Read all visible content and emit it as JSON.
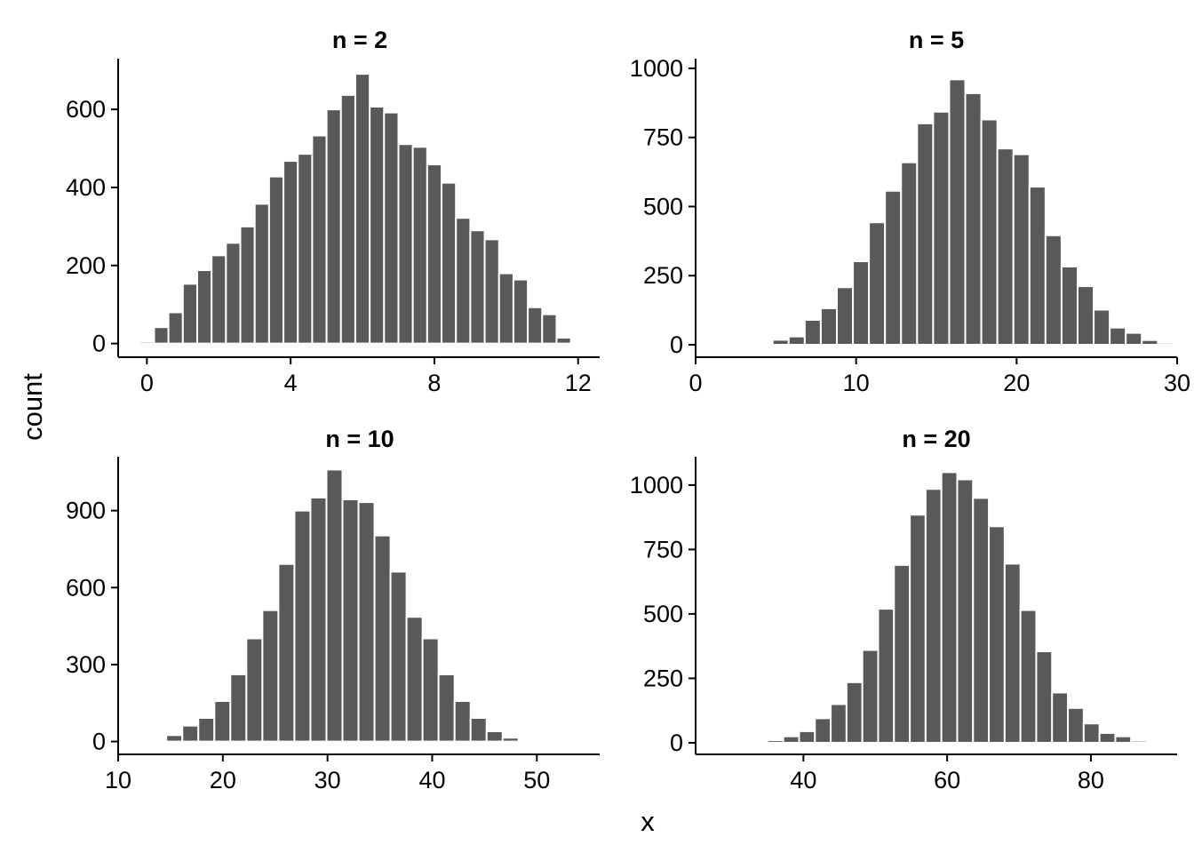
{
  "figure": {
    "xlabel": "x",
    "ylabel": "count",
    "bar_color": "#595959",
    "bar_outline": "#ffffff",
    "background": "#ffffff"
  },
  "chart_data": [
    {
      "type": "bar",
      "title": "n = 2",
      "xlim": [
        -0.8,
        12.6
      ],
      "ylim": [
        -35,
        730
      ],
      "xticks": [
        0,
        4,
        8,
        12
      ],
      "yticks": [
        0,
        200,
        400,
        600
      ],
      "bin_width": 0.4,
      "bin_start": -0.2,
      "values": [
        5,
        42,
        80,
        153,
        188,
        226,
        258,
        300,
        358,
        428,
        468,
        486,
        533,
        600,
        637,
        691,
        607,
        592,
        511,
        504,
        459,
        412,
        322,
        290,
        267,
        180,
        164,
        93,
        75,
        15
      ]
    },
    {
      "type": "bar",
      "title": "n = 5",
      "xlim": [
        0,
        30
      ],
      "ylim": [
        -45,
        1035
      ],
      "xticks": [
        0,
        10,
        20,
        30
      ],
      "yticks": [
        0,
        250,
        500,
        750,
        1000
      ],
      "bin_width": 1,
      "bin_start": 3.8,
      "values": [
        0,
        18,
        30,
        90,
        132,
        208,
        302,
        443,
        557,
        660,
        801,
        843,
        960,
        910,
        815,
        710,
        689,
        572,
        396,
        283,
        212,
        127,
        62,
        43,
        17,
        7
      ]
    },
    {
      "type": "bar",
      "title": "n = 10",
      "xlim": [
        10,
        56
      ],
      "ylim": [
        -50,
        1110
      ],
      "xticks": [
        10,
        20,
        30,
        40,
        50
      ],
      "yticks": [
        0,
        300,
        600,
        900
      ],
      "bin_width": 1.53,
      "bin_start": 14.6,
      "values": [
        25,
        62,
        92,
        158,
        262,
        402,
        512,
        692,
        900,
        951,
        1060,
        944,
        933,
        803,
        662,
        486,
        402,
        262,
        158,
        92,
        40,
        15
      ]
    },
    {
      "type": "bar",
      "title": "n = 20",
      "xlim": [
        25,
        92
      ],
      "ylim": [
        -45,
        1110
      ],
      "xticks": [
        40,
        60,
        80
      ],
      "yticks": [
        0,
        250,
        500,
        750,
        1000
      ],
      "bin_width": 2.2,
      "bin_start": 35,
      "values": [
        10,
        25,
        45,
        95,
        150,
        235,
        360,
        520,
        690,
        885,
        985,
        1050,
        1022,
        950,
        840,
        695,
        515,
        355,
        195,
        135,
        75,
        38,
        25,
        8
      ]
    }
  ]
}
